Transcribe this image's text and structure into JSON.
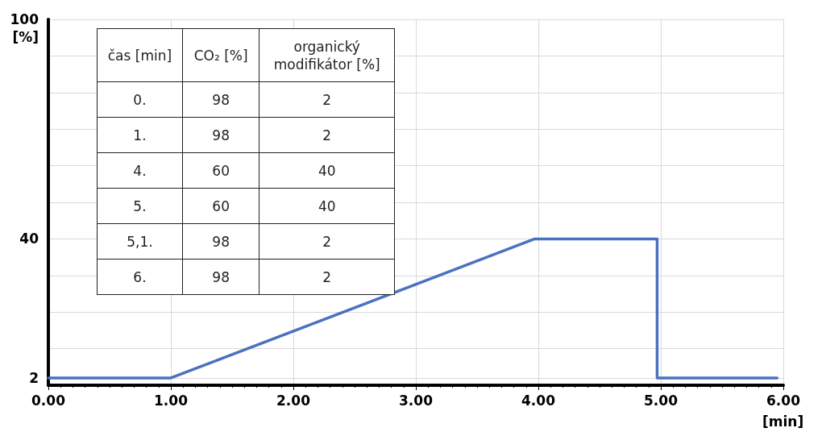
{
  "chart_data": {
    "type": "line",
    "xlabel": "[min]",
    "ylabel": "[%]",
    "x": [
      0,
      1,
      3.97,
      4.97,
      4.97,
      5.95
    ],
    "series": [
      {
        "color": "#4a72c0",
        "values": [
          2,
          2,
          40,
          40,
          2,
          2
        ]
      }
    ],
    "xlim": [
      0,
      6
    ],
    "xticks": [
      {
        "value": 0,
        "label": "0.00"
      },
      {
        "value": 1,
        "label": "1.00"
      },
      {
        "value": 2,
        "label": "2.00"
      },
      {
        "value": 3,
        "label": "3.00"
      },
      {
        "value": 4,
        "label": "4.00"
      },
      {
        "value": 5,
        "label": "5.00"
      },
      {
        "value": 6,
        "label": "6.00"
      }
    ],
    "ylim": [
      0,
      100
    ],
    "yticks": [
      2,
      {
        "value": 10,
        "label": null
      },
      {
        "value": 20,
        "label": null
      },
      {
        "value": 30,
        "label": null
      },
      40,
      {
        "value": 50,
        "label": null
      },
      {
        "value": 60,
        "label": null
      },
      {
        "value": 70,
        "label": null
      },
      {
        "value": 80,
        "label": null
      },
      {
        "value": 90,
        "label": null
      },
      100
    ],
    "grid": true,
    "marker": "none",
    "line_style": "solid",
    "annotations": [
      "čas [min]",
      "CO₂ [%]",
      "organický modifikátor [%]",
      "0.",
      "98",
      "2",
      "1.",
      "98",
      "2",
      "4.",
      "60",
      "40",
      "5.",
      "60",
      "40",
      "5,1.",
      "98",
      "2",
      "6.",
      "98",
      "2"
    ]
  }
}
